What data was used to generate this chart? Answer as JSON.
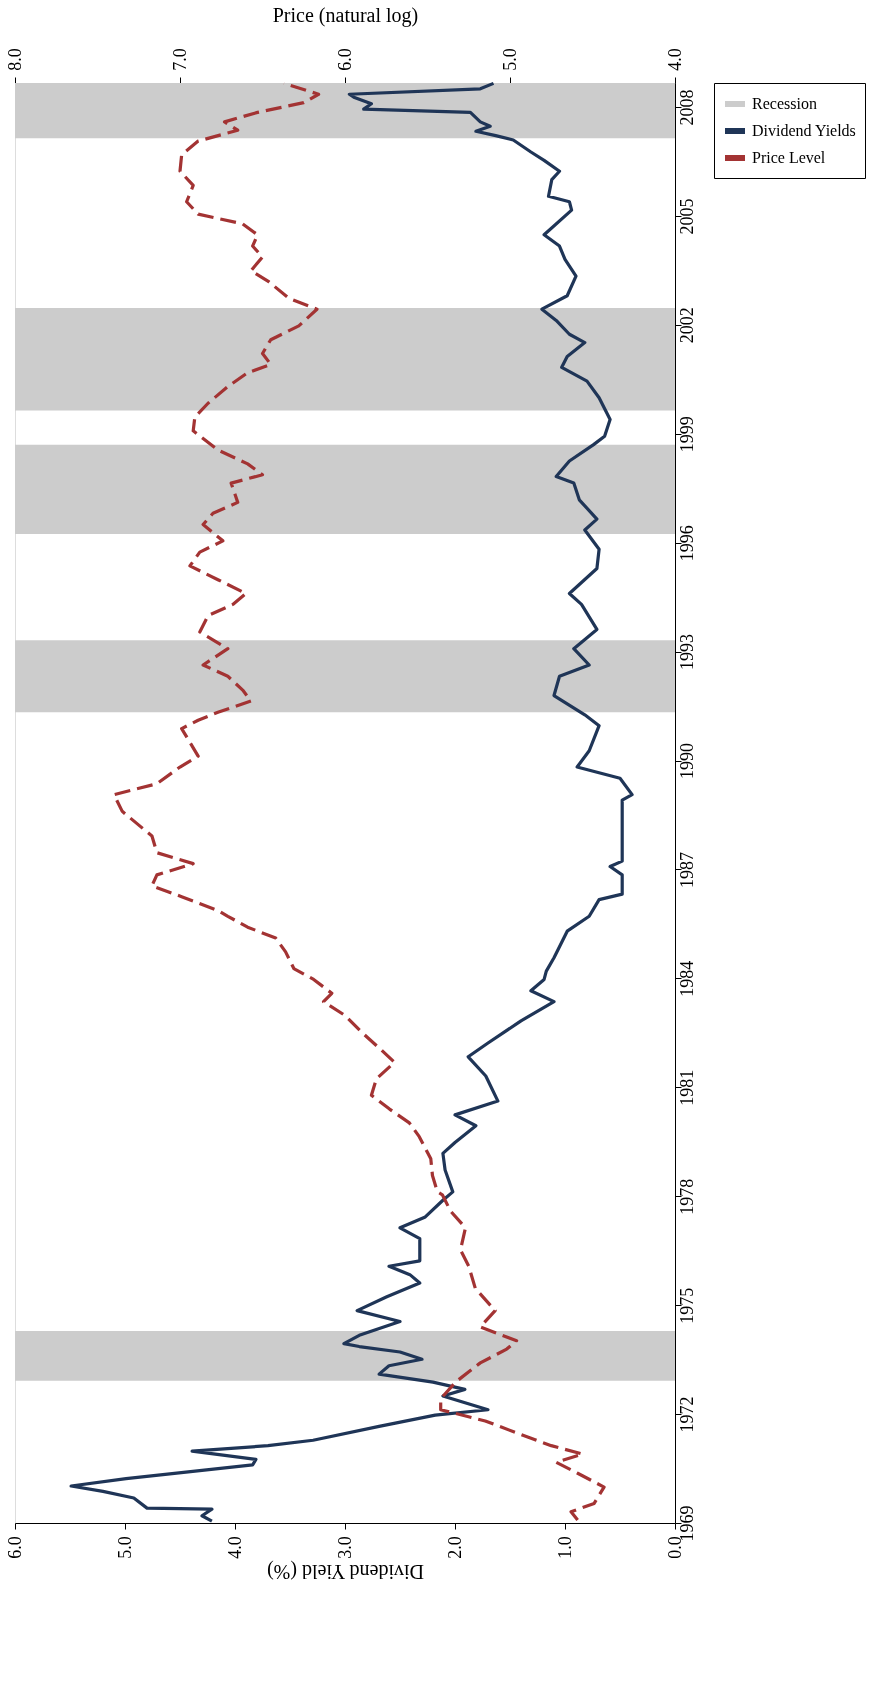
{
  "chart_data": {
    "type": "line",
    "xlabel": "Dividend Yield (%)",
    "x2label": "Price (natural log)",
    "ylim": [
      1969,
      2008.66
    ],
    "yticks": [
      1969,
      1972,
      1975,
      1978,
      1981,
      1984,
      1987,
      1990,
      1993,
      1996,
      1999,
      2002,
      2005,
      2008
    ],
    "xlim": [
      6,
      0
    ],
    "xticks": [
      {
        "value": 0,
        "label": "0.0"
      },
      {
        "value": 1,
        "label": "1.0"
      },
      {
        "value": 2,
        "label": "2.0"
      },
      {
        "value": 3,
        "label": "3.0"
      },
      {
        "value": 4,
        "label": "4.0"
      },
      {
        "value": 5,
        "label": "5.0"
      },
      {
        "value": 6,
        "label": "6.0"
      }
    ],
    "x2lim": [
      8,
      4
    ],
    "x2ticks": [
      {
        "value": 4,
        "label": "4.0"
      },
      {
        "value": 5,
        "label": "5.0"
      },
      {
        "value": 6,
        "label": "6.0"
      },
      {
        "value": 7,
        "label": "7.0"
      },
      {
        "value": 8,
        "label": "8.0"
      }
    ],
    "grid": false,
    "legend": "right",
    "bands": [
      {
        "axis": "y",
        "from": 1972.92,
        "to": 1974.29,
        "label": "Recession",
        "color": "#cccccc"
      },
      {
        "axis": "y",
        "from": 1991.33,
        "to": 1993.31,
        "color": "#cccccc"
      },
      {
        "axis": "y",
        "from": 1996.24,
        "to": 1998.7,
        "color": "#cccccc"
      },
      {
        "axis": "y",
        "from": 1999.64,
        "to": 2002.46,
        "color": "#cccccc"
      },
      {
        "axis": "y",
        "from": 2007.14,
        "to": 2008.66,
        "color": "#cccccc"
      }
    ],
    "series": [
      {
        "name": "Dividend Yields",
        "color": "#1f3557",
        "line_style": "solid",
        "values": [
          1969.05,
          1969.2,
          1969.38,
          1969.41,
          1969.69,
          1969.87,
          1970.02,
          1970.22,
          1970.45,
          1970.6,
          1970.75,
          1970.98,
          1971.13,
          1971.28,
          1971.66,
          1971.97,
          1972.12,
          1972.5,
          1972.68,
          1972.88,
          1973.1,
          1973.33,
          1973.51,
          1973.71,
          1973.86,
          1973.94,
          1974.17,
          1974.55,
          1974.85,
          1975.23,
          1975.61,
          1975.84,
          1976.07,
          1976.22,
          1976.83,
          1977.13,
          1977.43,
          1977.89,
          1978.12,
          1978.72,
          1979.18,
          1979.48,
          1979.94,
          1980.24,
          1980.62,
          1981.31,
          1981.84,
          1982.22,
          1982.83,
          1983.36,
          1983.66,
          1983.97,
          1984.2,
          1984.57,
          1985.3,
          1985.71,
          1986.17,
          1986.32,
          1986.85,
          1987.08,
          1987.23,
          1988.68,
          1988.91,
          1989.06,
          1989.51,
          1989.82,
          1990.27,
          1990.96,
          1991.26,
          1991.79,
          1992.32,
          1992.63,
          1993.08,
          1993.61,
          1994.3,
          1994.6,
          1995.29,
          1995.82,
          1996.35,
          1996.65,
          1997.18,
          1997.64,
          1997.82,
          1998.25,
          1998.7,
          1998.93,
          1999.39,
          1999.99,
          2000.45,
          2000.83,
          2001.13,
          2001.51,
          2001.74,
          2002.12,
          2002.43,
          2002.8,
          2003.34,
          2003.8,
          2004.17,
          2004.48,
          2005.16,
          2005.39,
          2005.54,
          2006.0,
          2006.23,
          2006.53,
          2006.76,
          2007.09,
          2007.21,
          2007.33,
          2007.47,
          2007.59,
          2007.85,
          2007.94,
          2008.09,
          2008.27,
          2008.35,
          2008.5,
          2008.65
        ],
        "x": [
          4.21,
          4.3,
          4.21,
          4.8,
          4.92,
          5.2,
          5.49,
          4.99,
          4.3,
          3.84,
          3.81,
          4.39,
          3.7,
          3.29,
          2.69,
          2.18,
          1.7,
          2.11,
          1.91,
          2.2,
          2.69,
          2.6,
          2.3,
          2.5,
          2.87,
          3.01,
          2.87,
          2.5,
          2.89,
          2.62,
          2.32,
          2.41,
          2.6,
          2.32,
          2.32,
          2.5,
          2.27,
          2.11,
          2.02,
          2.09,
          2.11,
          2.0,
          1.81,
          2.0,
          1.61,
          1.72,
          1.88,
          1.7,
          1.4,
          1.1,
          1.31,
          1.19,
          1.17,
          1.1,
          0.98,
          0.78,
          0.69,
          0.48,
          0.48,
          0.59,
          0.48,
          0.48,
          0.48,
          0.39,
          0.5,
          0.89,
          0.78,
          0.69,
          0.82,
          1.1,
          1.05,
          0.78,
          0.92,
          0.71,
          0.85,
          0.96,
          0.71,
          0.69,
          0.82,
          0.71,
          0.87,
          0.92,
          1.08,
          0.96,
          0.74,
          0.64,
          0.59,
          0.69,
          0.8,
          1.03,
          0.98,
          0.82,
          0.96,
          1.08,
          1.21,
          0.98,
          0.9,
          1.0,
          1.05,
          1.19,
          0.94,
          0.96,
          1.15,
          1.12,
          1.05,
          1.19,
          1.31,
          1.47,
          1.63,
          1.81,
          1.68,
          1.77,
          1.86,
          2.83,
          2.76,
          2.92,
          2.96,
          1.77,
          1.65
        ]
      },
      {
        "name": "Price Level",
        "color": "#a33333",
        "line_style": "dashed",
        "axis": "x2",
        "values": [
          1969.08,
          1969.31,
          1969.54,
          1969.99,
          1970.37,
          1970.67,
          1970.9,
          1971.13,
          1971.43,
          1971.81,
          1972.12,
          1972.42,
          1972.88,
          1973.41,
          1973.79,
          1974.02,
          1974.4,
          1974.85,
          1975.46,
          1976.07,
          1976.52,
          1977.13,
          1977.59,
          1978.04,
          1978.12,
          1978.57,
          1979.03,
          1979.64,
          1980.02,
          1980.4,
          1980.78,
          1981.23,
          1981.69,
          1982.07,
          1982.52,
          1982.98,
          1983.36,
          1983.59,
          1983.97,
          1984.27,
          1984.73,
          1985.11,
          1985.41,
          1985.71,
          1985.87,
          1986.25,
          1986.55,
          1986.85,
          1987.16,
          1987.46,
          1987.92,
          1988.6,
          1989.06,
          1989.36,
          1989.82,
          1990.12,
          1990.5,
          1990.88,
          1991.11,
          1991.33,
          1991.64,
          1991.94,
          1992.32,
          1992.63,
          1993.08,
          1993.54,
          1993.99,
          1994.3,
          1994.6,
          1994.98,
          1995.36,
          1995.74,
          1996.05,
          1996.5,
          1996.81,
          1997.11,
          1997.64,
          1997.87,
          1998.17,
          1998.55,
          1999.08,
          1999.46,
          1999.84,
          2000.3,
          2000.68,
          2000.91,
          2001.21,
          2001.59,
          2001.97,
          2002.43,
          2002.73,
          2003.18,
          2003.49,
          2003.87,
          2004.17,
          2004.48,
          2004.78,
          2005.05,
          2005.39,
          2005.84,
          2006.23,
          2006.68,
          2007.06,
          2007.36,
          2007.59,
          2007.85,
          2008.12,
          2008.35,
          2008.65
        ],
        "x": [
          4.59,
          4.63,
          4.49,
          4.43,
          4.59,
          4.72,
          4.56,
          4.75,
          4.93,
          5.15,
          5.42,
          5.42,
          5.33,
          5.18,
          5.02,
          4.96,
          5.18,
          5.09,
          5.21,
          5.25,
          5.3,
          5.27,
          5.36,
          5.41,
          5.44,
          5.47,
          5.48,
          5.55,
          5.61,
          5.73,
          5.84,
          5.81,
          5.7,
          5.79,
          5.9,
          6.0,
          6.13,
          6.08,
          6.19,
          6.31,
          6.36,
          6.42,
          6.59,
          6.71,
          6.77,
          6.99,
          7.17,
          7.14,
          6.92,
          7.14,
          7.17,
          7.35,
          7.4,
          7.14,
          7.0,
          6.89,
          6.94,
          6.99,
          6.89,
          6.77,
          6.57,
          6.62,
          6.71,
          6.86,
          6.71,
          6.88,
          6.83,
          6.68,
          6.6,
          6.77,
          6.94,
          6.88,
          6.74,
          6.86,
          6.8,
          6.65,
          6.69,
          6.5,
          6.59,
          6.77,
          6.92,
          6.91,
          6.83,
          6.71,
          6.59,
          6.45,
          6.5,
          6.45,
          6.28,
          6.17,
          6.34,
          6.46,
          6.57,
          6.5,
          6.56,
          6.53,
          6.62,
          6.89,
          6.96,
          6.92,
          7.0,
          6.99,
          6.89,
          6.65,
          6.73,
          6.53,
          6.25,
          6.16,
          6.37
        ]
      }
    ]
  }
}
